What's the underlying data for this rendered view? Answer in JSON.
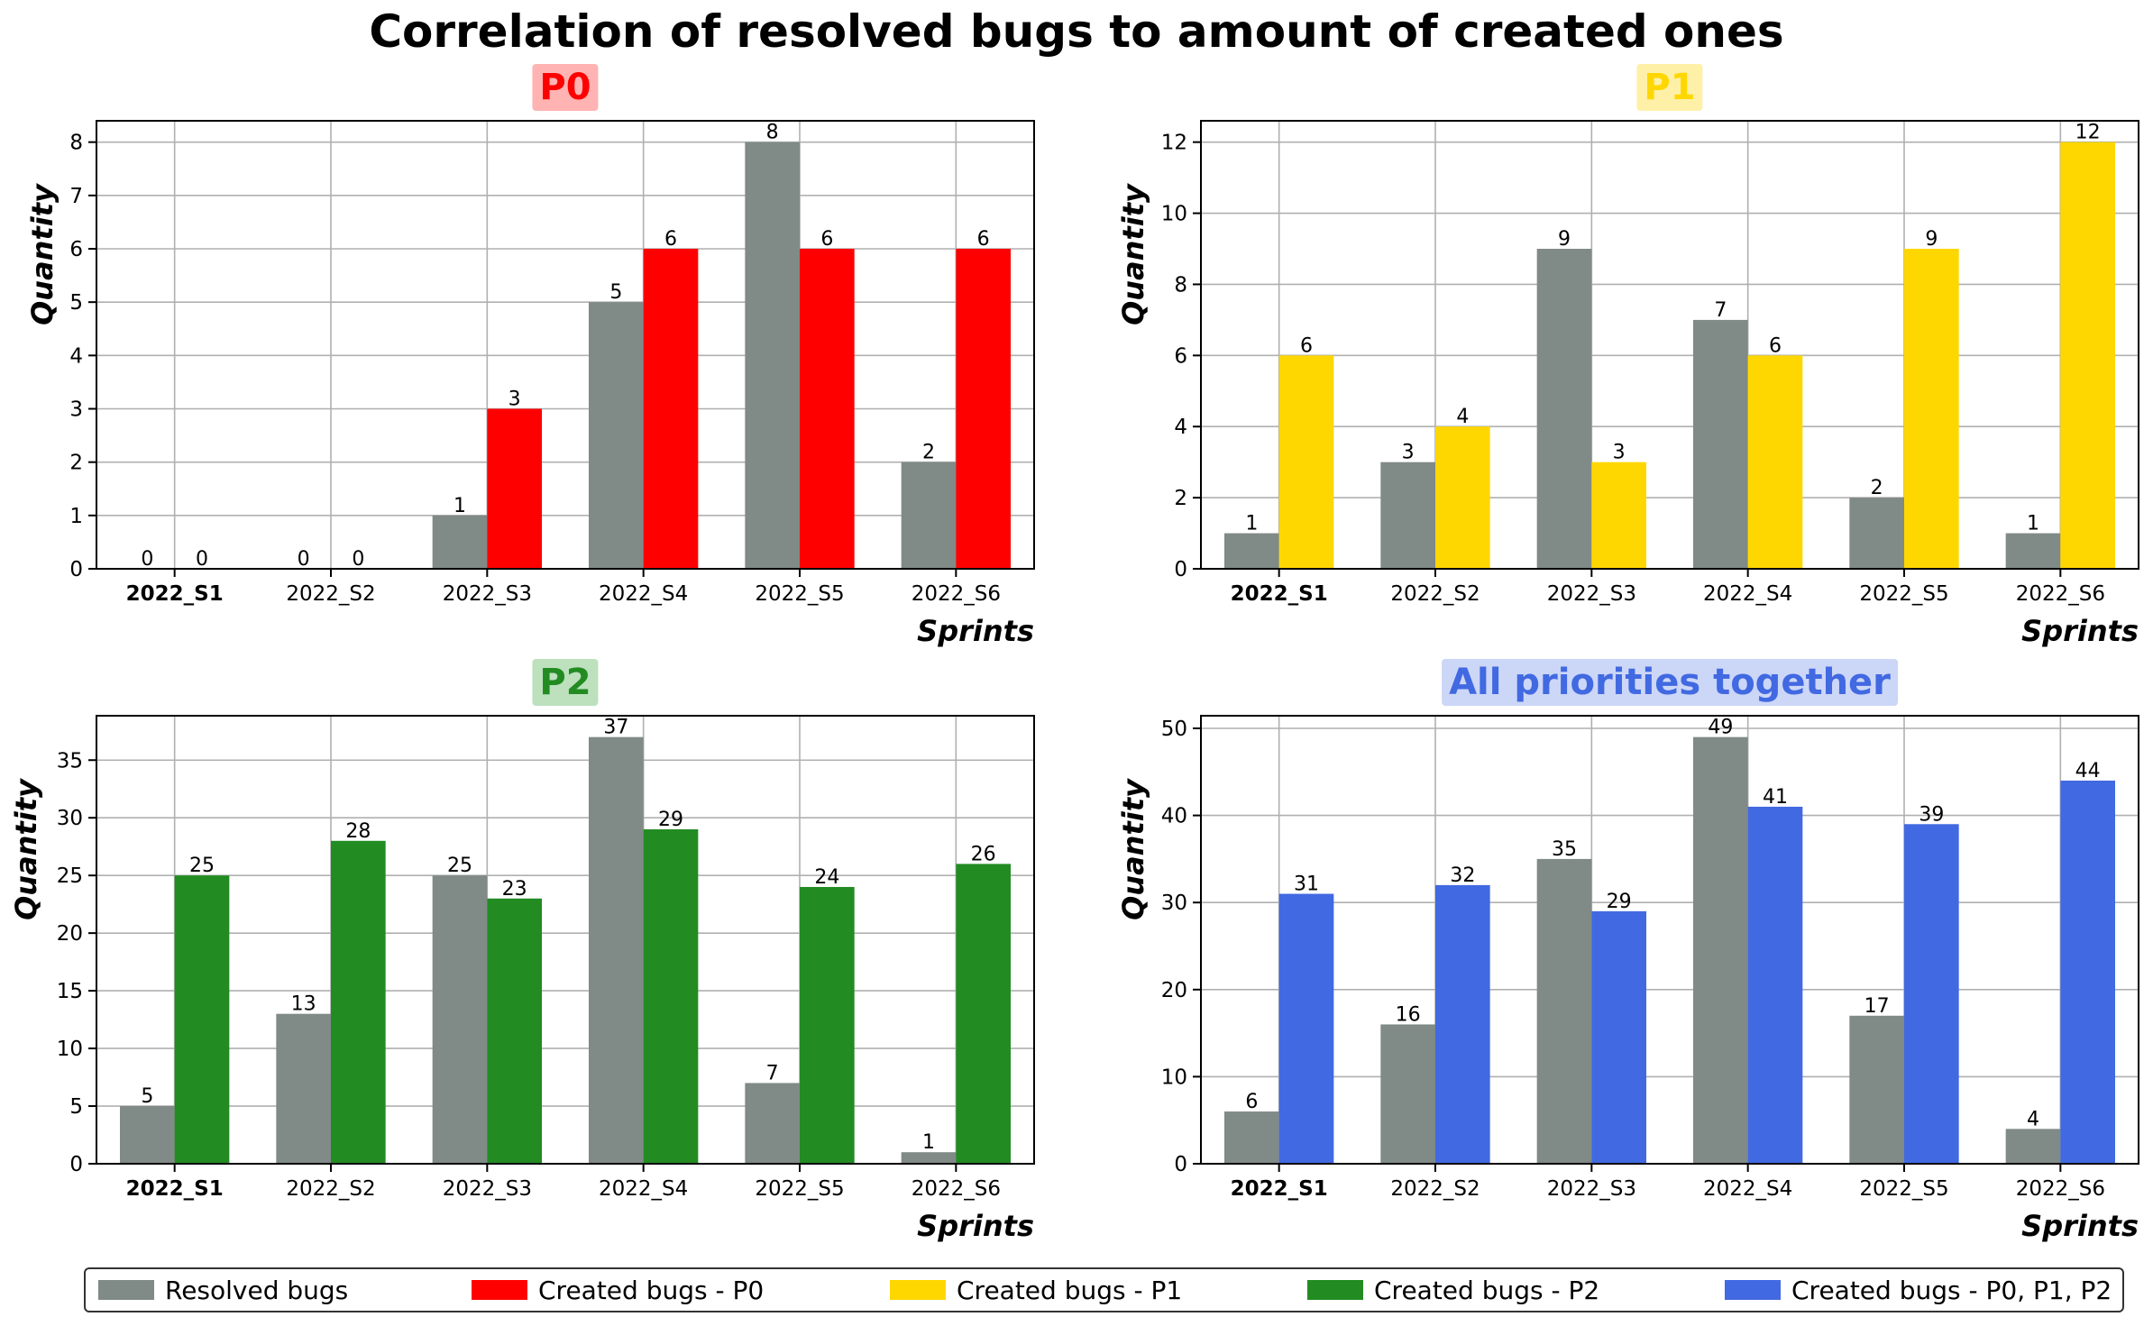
{
  "figure": {
    "title": "Correlation of resolved bugs to amount of created ones"
  },
  "colors": {
    "resolved": "#808a87",
    "p0": "#ff0000",
    "p1": "#ffd700",
    "p2": "#228b22",
    "all": "#4169e1"
  },
  "legend": [
    {
      "label": "Resolved bugs",
      "color": "#808a87"
    },
    {
      "label": "Created bugs - P0",
      "color": "#ff0000"
    },
    {
      "label": "Created bugs - P1",
      "color": "#ffd700"
    },
    {
      "label": "Created bugs - P2",
      "color": "#228b22"
    },
    {
      "label": "Created bugs - P0, P1, P2",
      "color": "#4169e1"
    }
  ],
  "chart_data": [
    {
      "type": "bar",
      "title": "P0",
      "title_color": "#ff0000",
      "title_bg": "#ffb3b3",
      "xlabel": "Sprints",
      "ylabel": "Quantity",
      "categories": [
        "2022_S1",
        "2022_S2",
        "2022_S3",
        "2022_S4",
        "2022_S5",
        "2022_S6"
      ],
      "bold_category": "2022_S1",
      "ylim": [
        0,
        8.4
      ],
      "yticks": [
        0,
        1,
        2,
        3,
        4,
        5,
        6,
        7,
        8
      ],
      "grid": true,
      "series": [
        {
          "name": "Resolved bugs",
          "color": "#808a87",
          "values": [
            0,
            0,
            1,
            5,
            8,
            2
          ]
        },
        {
          "name": "Created bugs - P0",
          "color": "#ff0000",
          "values": [
            0,
            0,
            3,
            6,
            6,
            6
          ]
        }
      ]
    },
    {
      "type": "bar",
      "title": "P1",
      "title_color": "#ffd700",
      "title_bg": "#fff0a8",
      "xlabel": "Sprints",
      "ylabel": "Quantity",
      "categories": [
        "2022_S1",
        "2022_S2",
        "2022_S3",
        "2022_S4",
        "2022_S5",
        "2022_S6"
      ],
      "bold_category": "2022_S1",
      "ylim": [
        0,
        12.6
      ],
      "yticks": [
        0,
        2,
        4,
        6,
        8,
        10,
        12
      ],
      "grid": true,
      "series": [
        {
          "name": "Resolved bugs",
          "color": "#808a87",
          "values": [
            1,
            3,
            9,
            7,
            2,
            1
          ]
        },
        {
          "name": "Created bugs - P1",
          "color": "#ffd700",
          "values": [
            6,
            4,
            3,
            6,
            9,
            12
          ]
        }
      ]
    },
    {
      "type": "bar",
      "title": "P2",
      "title_color": "#228b22",
      "title_bg": "#bde0bd",
      "xlabel": "Sprints",
      "ylabel": "Quantity",
      "categories": [
        "2022_S1",
        "2022_S2",
        "2022_S3",
        "2022_S4",
        "2022_S5",
        "2022_S6"
      ],
      "bold_category": "2022_S1",
      "ylim": [
        0,
        38.85
      ],
      "yticks": [
        0,
        5,
        10,
        15,
        20,
        25,
        30,
        35
      ],
      "grid": true,
      "series": [
        {
          "name": "Resolved bugs",
          "color": "#808a87",
          "values": [
            5,
            13,
            25,
            37,
            7,
            1
          ]
        },
        {
          "name": "Created bugs - P2",
          "color": "#228b22",
          "values": [
            25,
            28,
            23,
            29,
            24,
            26
          ]
        }
      ]
    },
    {
      "type": "bar",
      "title": "All priorities together",
      "title_color": "#4169e1",
      "title_bg": "#ccd6f7",
      "xlabel": "Sprints",
      "ylabel": "Quantity",
      "categories": [
        "2022_S1",
        "2022_S2",
        "2022_S3",
        "2022_S4",
        "2022_S5",
        "2022_S6"
      ],
      "bold_category": "2022_S1",
      "ylim": [
        0,
        51.45
      ],
      "yticks": [
        0,
        10,
        20,
        30,
        40,
        50
      ],
      "grid": true,
      "series": [
        {
          "name": "Resolved bugs",
          "color": "#808a87",
          "values": [
            6,
            16,
            35,
            49,
            17,
            4
          ]
        },
        {
          "name": "Created bugs - P0, P1, P2",
          "color": "#4169e1",
          "values": [
            31,
            32,
            29,
            41,
            39,
            44
          ]
        }
      ]
    }
  ]
}
